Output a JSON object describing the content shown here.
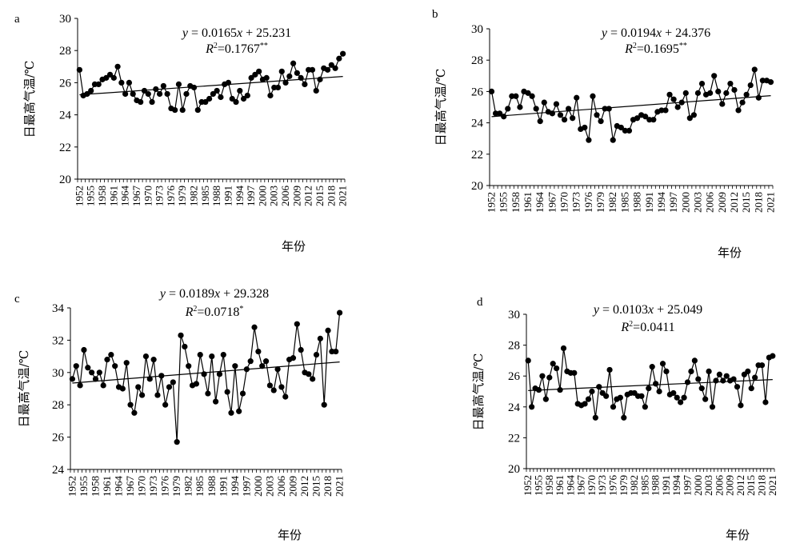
{
  "chart_data": [
    {
      "type": "line",
      "panel_label": "a",
      "equation": "y = 0.0165x + 25.231",
      "r2": "R²=0.1767**",
      "xlabel": "年份",
      "ylabel": "日最高气温/℃",
      "ylim": [
        20,
        30
      ],
      "yticks": [
        "20",
        "22",
        "24",
        "26",
        "28",
        "30"
      ],
      "xticks": [
        "1952",
        "1955",
        "1958",
        "1961",
        "1964",
        "1967",
        "1970",
        "1973",
        "1976",
        "1979",
        "1982",
        "1985",
        "1988",
        "1991",
        "1994",
        "1997",
        "2000",
        "2003",
        "2006",
        "2009",
        "2012",
        "2015",
        "2018",
        "2021"
      ],
      "x_start": 1952,
      "x_end": 2021,
      "trend": {
        "slope": 0.0165,
        "intercept": 25.231
      },
      "values": [
        26.8,
        25.2,
        25.3,
        25.5,
        25.9,
        25.9,
        26.2,
        26.3,
        26.5,
        26.3,
        27.0,
        26.0,
        25.3,
        26.0,
        25.3,
        24.9,
        24.8,
        25.5,
        25.3,
        24.8,
        25.6,
        25.3,
        25.8,
        25.3,
        24.4,
        24.3,
        25.9,
        24.3,
        25.3,
        25.8,
        25.7,
        24.3,
        24.8,
        24.8,
        25.0,
        25.3,
        25.5,
        25.1,
        25.9,
        26.0,
        25.0,
        24.8,
        25.5,
        25.0,
        25.2,
        26.3,
        26.5,
        26.7,
        26.2,
        26.3,
        25.2,
        25.7,
        25.7,
        26.7,
        26.0,
        26.4,
        27.2,
        26.6,
        26.3,
        25.9,
        26.8,
        26.8,
        25.5,
        26.2,
        26.9,
        26.8,
        27.1,
        26.9,
        27.5,
        27.8
      ]
    },
    {
      "type": "line",
      "panel_label": "b",
      "equation": "y = 0.0194x + 24.376",
      "r2": "R²=0.1695**",
      "xlabel": "年份",
      "ylabel": "日最高气温/℃",
      "ylim": [
        20,
        30
      ],
      "yticks": [
        "20",
        "22",
        "24",
        "26",
        "28",
        "30"
      ],
      "xticks": [
        "1952",
        "1955",
        "1958",
        "1961",
        "1964",
        "1967",
        "1970",
        "1973",
        "1976",
        "1979",
        "1982",
        "1985",
        "1988",
        "1991",
        "1994",
        "1997",
        "2000",
        "2003",
        "2006",
        "2009",
        "2012",
        "2015",
        "2018",
        "2021"
      ],
      "x_start": 1952,
      "x_end": 2021,
      "trend": {
        "slope": 0.0194,
        "intercept": 24.376
      },
      "values": [
        26.0,
        24.6,
        24.6,
        24.4,
        24.9,
        25.7,
        25.7,
        25.0,
        26.0,
        25.9,
        25.7,
        24.9,
        24.1,
        25.3,
        24.7,
        24.6,
        25.2,
        24.5,
        24.2,
        24.9,
        24.3,
        25.6,
        23.6,
        23.7,
        22.9,
        25.7,
        24.5,
        24.1,
        24.9,
        24.9,
        22.9,
        23.8,
        23.7,
        23.5,
        23.5,
        24.2,
        24.3,
        24.5,
        24.4,
        24.2,
        24.2,
        24.7,
        24.8,
        24.8,
        25.8,
        25.5,
        25.0,
        25.3,
        25.9,
        24.3,
        24.5,
        25.9,
        26.5,
        25.8,
        25.9,
        27.0,
        26.0,
        25.2,
        25.9,
        26.5,
        26.1,
        24.8,
        25.3,
        25.8,
        26.4,
        27.4,
        25.6,
        26.7,
        26.7,
        26.6
      ]
    },
    {
      "type": "line",
      "panel_label": "c",
      "equation": "y = 0.0189x + 29.328",
      "r2": "R²=0.0718*",
      "xlabel": "年份",
      "ylabel": "日最高气温/℃",
      "ylim": [
        24,
        34
      ],
      "yticks": [
        "24",
        "26",
        "28",
        "30",
        "32",
        "34"
      ],
      "xticks": [
        "1952",
        "1955",
        "1958",
        "1961",
        "1964",
        "1967",
        "1970",
        "1973",
        "1976",
        "1979",
        "1982",
        "1985",
        "1988",
        "1991",
        "1994",
        "1997",
        "2000",
        "2003",
        "2006",
        "2009",
        "2012",
        "2015",
        "2018",
        "2021"
      ],
      "x_start": 1952,
      "x_end": 2021,
      "trend": {
        "slope": 0.0189,
        "intercept": 29.328
      },
      "values": [
        29.6,
        30.4,
        29.2,
        31.4,
        30.3,
        30.0,
        29.6,
        30.0,
        29.2,
        30.8,
        31.1,
        30.4,
        29.1,
        29.0,
        30.6,
        28.0,
        27.5,
        29.1,
        28.6,
        31.0,
        29.6,
        30.8,
        28.6,
        29.8,
        28.0,
        29.1,
        29.4,
        25.7,
        32.3,
        31.6,
        30.4,
        29.2,
        29.3,
        31.1,
        29.9,
        28.7,
        31.0,
        28.2,
        29.9,
        31.1,
        28.8,
        27.5,
        30.4,
        27.6,
        28.7,
        30.2,
        30.7,
        32.8,
        31.3,
        30.4,
        30.7,
        29.2,
        28.9,
        30.2,
        29.1,
        28.5,
        30.8,
        30.9,
        33.0,
        31.4,
        30.0,
        29.9,
        29.6,
        31.1,
        32.1,
        28.0,
        32.6,
        31.3,
        31.3,
        33.7
      ]
    },
    {
      "type": "line",
      "panel_label": "d",
      "equation": "y = 0.0103x + 25.049",
      "r2": "R²=0.0411",
      "xlabel": "年份",
      "ylabel": "日最高气温/℃",
      "ylim": [
        20,
        30
      ],
      "yticks": [
        "20",
        "22",
        "24",
        "26",
        "28",
        "30"
      ],
      "xticks": [
        "1952",
        "1955",
        "1958",
        "1961",
        "1964",
        "1967",
        "1970",
        "1973",
        "1976",
        "1979",
        "1982",
        "1985",
        "1988",
        "1991",
        "1994",
        "1997",
        "2000",
        "2003",
        "2006",
        "2009",
        "2012",
        "2015",
        "2018",
        "2021"
      ],
      "x_start": 1952,
      "x_end": 2021,
      "trend": {
        "slope": 0.0103,
        "intercept": 25.049
      },
      "values": [
        27.0,
        24.0,
        25.2,
        25.1,
        26.0,
        24.5,
        25.9,
        26.8,
        26.5,
        25.1,
        27.8,
        26.3,
        26.2,
        26.2,
        24.2,
        24.1,
        24.2,
        24.5,
        25.0,
        23.3,
        25.3,
        24.9,
        24.7,
        26.4,
        24.0,
        24.5,
        24.6,
        23.3,
        24.8,
        24.9,
        24.9,
        24.7,
        24.7,
        24.0,
        25.2,
        26.6,
        25.5,
        25.0,
        26.8,
        26.3,
        24.8,
        24.9,
        24.6,
        24.3,
        24.6,
        25.6,
        26.3,
        27.0,
        25.8,
        25.2,
        24.5,
        26.3,
        24.0,
        25.7,
        26.1,
        25.7,
        26.0,
        25.7,
        25.8,
        25.3,
        24.1,
        26.1,
        26.3,
        25.2,
        25.9,
        26.7,
        26.7,
        24.3,
        27.2,
        27.3
      ]
    }
  ]
}
